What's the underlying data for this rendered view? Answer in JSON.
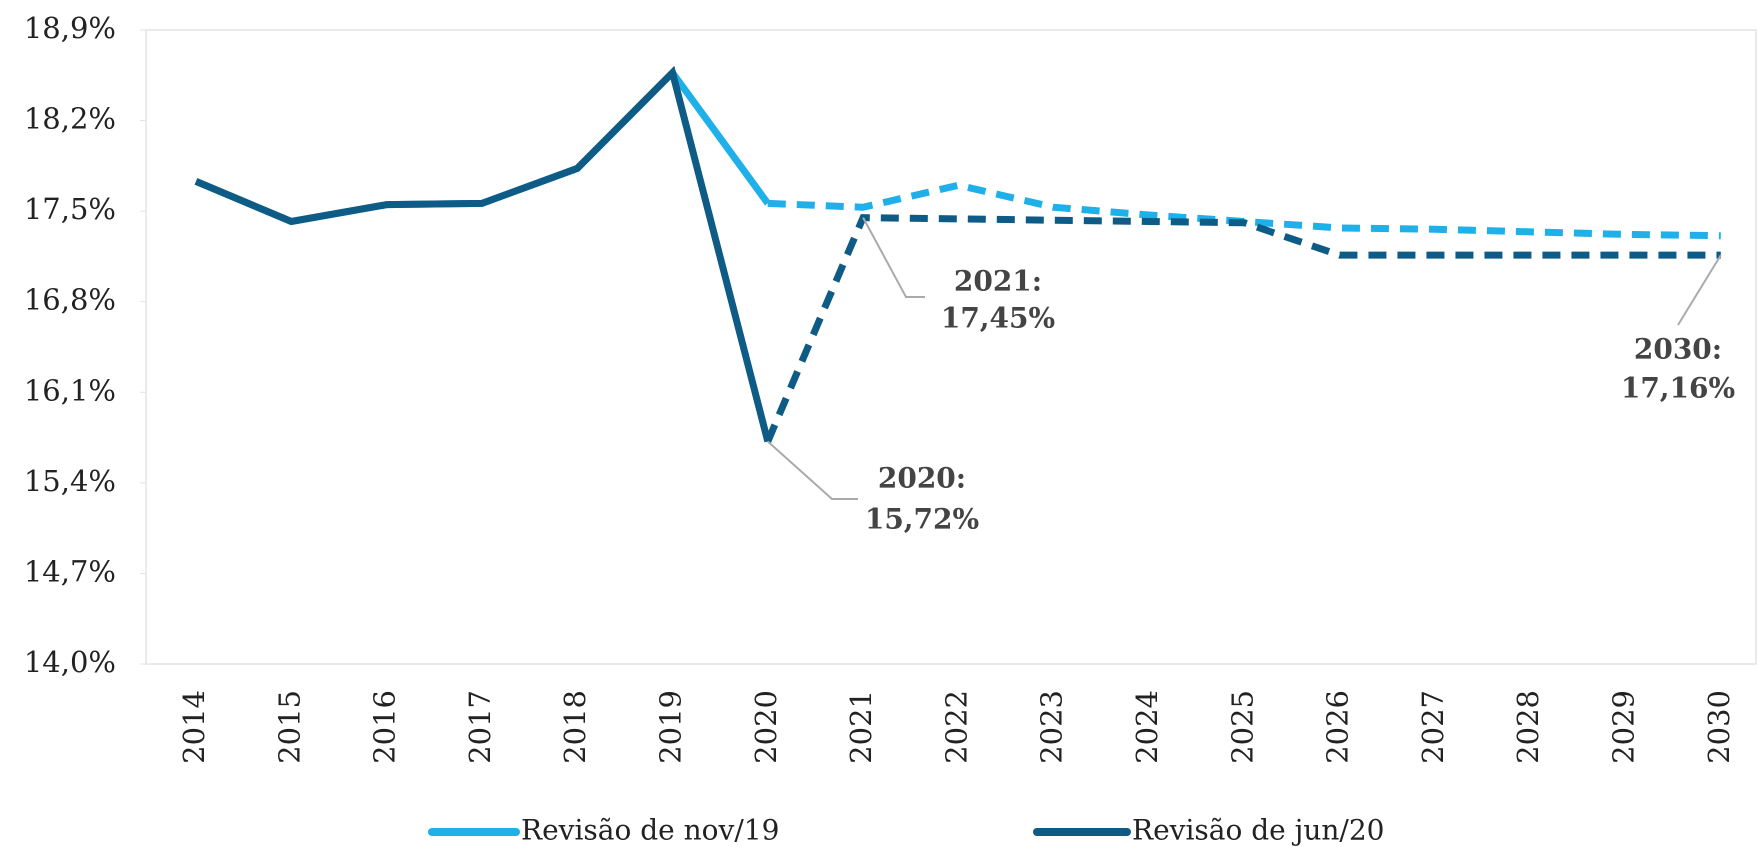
{
  "chart_data": {
    "type": "line",
    "categories": [
      "2014",
      "2015",
      "2016",
      "2017",
      "2018",
      "2019",
      "2020",
      "2021",
      "2022",
      "2023",
      "2024",
      "2025",
      "2026",
      "2027",
      "2028",
      "2029",
      "2030"
    ],
    "dash_from": "2020",
    "series": [
      {
        "name": "Revisão de nov/19",
        "color": "#1fb0ea",
        "values": [
          17.73,
          17.42,
          17.55,
          17.56,
          17.83,
          18.57,
          17.56,
          17.53,
          17.7,
          17.53,
          17.47,
          17.42,
          17.37,
          17.36,
          17.34,
          17.32,
          17.31
        ]
      },
      {
        "name": "Revisão de jun/20",
        "color": "#0e5b86",
        "values": [
          17.73,
          17.42,
          17.55,
          17.56,
          17.83,
          18.57,
          15.72,
          17.45,
          17.44,
          17.43,
          17.42,
          17.41,
          17.16,
          17.16,
          17.16,
          17.16,
          17.16
        ]
      }
    ],
    "ylim": [
      14.0,
      18.9
    ],
    "yticks": [
      {
        "value": 18.9,
        "label": "18,9%"
      },
      {
        "value": 18.2,
        "label": "18,2%"
      },
      {
        "value": 17.5,
        "label": "17,5%"
      },
      {
        "value": 16.8,
        "label": "16,8%"
      },
      {
        "value": 16.1,
        "label": "16,1%"
      },
      {
        "value": 15.4,
        "label": "15,4%"
      },
      {
        "value": 14.7,
        "label": "14,7%"
      },
      {
        "value": 14.0,
        "label": "14,0%"
      }
    ],
    "annotations": [
      {
        "lines": [
          "2021:",
          "17,45%"
        ]
      },
      {
        "lines": [
          "2020:",
          "15,72%"
        ]
      },
      {
        "lines": [
          "2030:",
          "17,16%"
        ]
      }
    ],
    "legend": "bottom"
  }
}
